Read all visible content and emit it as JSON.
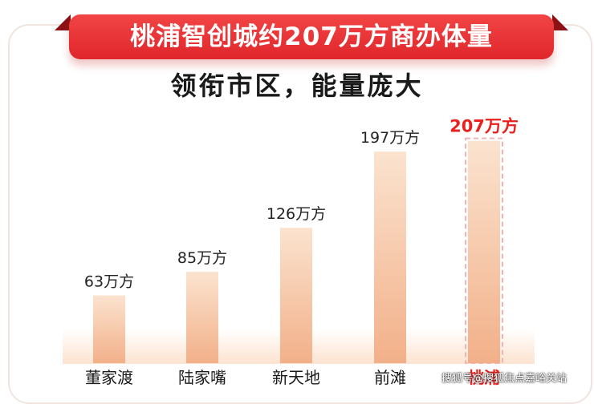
{
  "banner": {
    "title": "桃浦智创城约207万方商办体量"
  },
  "subtitle": "领衔市区，能量庞大",
  "colors": {
    "banner_red": "#e8302f",
    "bar_top": "#fbe3cf",
    "bar_bottom": "#f2b089",
    "highlight_label": "#e8201e",
    "highlight_border": "#f3b3b3"
  },
  "chart_data": {
    "type": "bar",
    "title": "桃浦智创城约207万方商办体量",
    "subtitle": "领衔市区，能量庞大",
    "categories": [
      "董家渡",
      "陆家嘴",
      "新天地",
      "前滩",
      "桃浦"
    ],
    "values": [
      63,
      85,
      126,
      197,
      207
    ],
    "unit": "万方",
    "value_labels": [
      "63万方",
      "85万方",
      "126万方",
      "197万方",
      "207万方"
    ],
    "highlight_index": 4,
    "grid": false,
    "legend": "none"
  },
  "watermark": "搜狐号@搜狐焦点嘉峪关站"
}
